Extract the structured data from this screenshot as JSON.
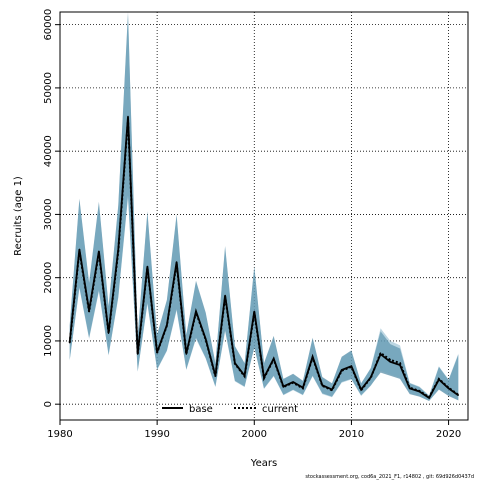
{
  "chart_data": {
    "type": "area",
    "title": "",
    "xlabel": "Years",
    "ylabel": "Recruits (age 1)",
    "xlim": [
      1980,
      2022
    ],
    "ylim": [
      -2500,
      62000
    ],
    "xticks": [
      1980,
      1990,
      2000,
      2010,
      2020
    ],
    "xtick_labels": [
      "1980",
      "1990",
      "2000",
      "2010",
      "2020"
    ],
    "yticks": [
      0,
      10000,
      20000,
      30000,
      40000,
      50000,
      60000
    ],
    "ytick_labels": [
      "0",
      "10000",
      "20000",
      "30000",
      "40000",
      "50000",
      "60000"
    ],
    "grid": true,
    "legend_position": "bottom-center",
    "x": [
      1981,
      1982,
      1983,
      1984,
      1985,
      1986,
      1987,
      1988,
      1989,
      1990,
      1991,
      1992,
      1993,
      1994,
      1995,
      1996,
      1997,
      1998,
      1999,
      2000,
      2001,
      2002,
      2003,
      2004,
      2005,
      2006,
      2007,
      2008,
      2009,
      2010,
      2011,
      2012,
      2013,
      2014,
      2015,
      2016,
      2017,
      2018,
      2019,
      2020,
      2021
    ],
    "series": [
      {
        "name": "base",
        "color": "#000000",
        "style": "solid",
        "values": [
          9800,
          24500,
          14800,
          24200,
          11300,
          24500,
          45500,
          8000,
          21800,
          8200,
          12500,
          22500,
          8000,
          14700,
          10300,
          4500,
          17200,
          6500,
          4500,
          14700,
          4200,
          7200,
          2800,
          3500,
          2600,
          7500,
          3000,
          2300,
          5400,
          6000,
          2300,
          4300,
          7900,
          6700,
          6200,
          2500,
          2000,
          1000,
          3900,
          2500,
          1400
        ],
        "lower": [
          7000,
          18500,
          10500,
          18000,
          7800,
          17000,
          33000,
          5200,
          16000,
          5500,
          8500,
          15000,
          5500,
          10500,
          7300,
          2800,
          11700,
          3700,
          2800,
          9000,
          2500,
          4500,
          1500,
          2300,
          1500,
          4500,
          1700,
          1200,
          3500,
          4000,
          1400,
          3000,
          5000,
          4500,
          4000,
          1600,
          1200,
          500,
          2300,
          1300,
          600
        ],
        "upper": [
          12500,
          32500,
          19200,
          32000,
          15500,
          31500,
          62000,
          10800,
          30500,
          11000,
          16500,
          30000,
          11000,
          19500,
          14500,
          6500,
          25000,
          9200,
          6500,
          21800,
          6500,
          10800,
          4000,
          4800,
          3700,
          10500,
          4300,
          3300,
          7500,
          8500,
          3300,
          5700,
          11500,
          9500,
          8800,
          3300,
          2700,
          1300,
          5900,
          3800,
          7800
        ]
      },
      {
        "name": "current",
        "color": "#000000",
        "style": "dotted",
        "values": [
          9700,
          24200,
          14600,
          23900,
          11200,
          24200,
          45000,
          7900,
          21600,
          8100,
          12400,
          22200,
          7900,
          14500,
          10200,
          4400,
          17000,
          6400,
          4400,
          14500,
          4100,
          7100,
          2700,
          3400,
          2500,
          7400,
          2900,
          2200,
          5300,
          5900,
          2200,
          4200,
          8100,
          7000,
          6500,
          2600,
          2100,
          1100,
          4000,
          2600,
          1500
        ],
        "lower": [
          6900,
          18300,
          10300,
          17800,
          7700,
          16800,
          32600,
          5100,
          15800,
          5400,
          8400,
          14800,
          5400,
          10300,
          7200,
          2700,
          11500,
          3600,
          2700,
          8900,
          2400,
          4400,
          1400,
          2200,
          1400,
          4400,
          1600,
          1100,
          3400,
          3900,
          1300,
          2900,
          5300,
          4700,
          4200,
          1700,
          1300,
          550,
          2400,
          1400,
          650
        ],
        "upper": [
          12300,
          32200,
          19000,
          31700,
          15300,
          31200,
          61500,
          10700,
          30200,
          10900,
          16300,
          29700,
          10900,
          19300,
          14300,
          6400,
          24700,
          9100,
          6400,
          21500,
          6400,
          10600,
          3900,
          4700,
          3600,
          10300,
          4200,
          3200,
          7400,
          8400,
          3200,
          5800,
          12000,
          10000,
          9300,
          3400,
          2800,
          1400,
          6000,
          3900,
          8000
        ]
      }
    ],
    "interval_colors": [
      "#5b8fa8",
      "#6aa3bf"
    ],
    "legend": [
      "base",
      "current"
    ]
  },
  "footer_note": "stockassessment.org, cod6a_2021_F1, r14802 , git: 69d926d0437d"
}
